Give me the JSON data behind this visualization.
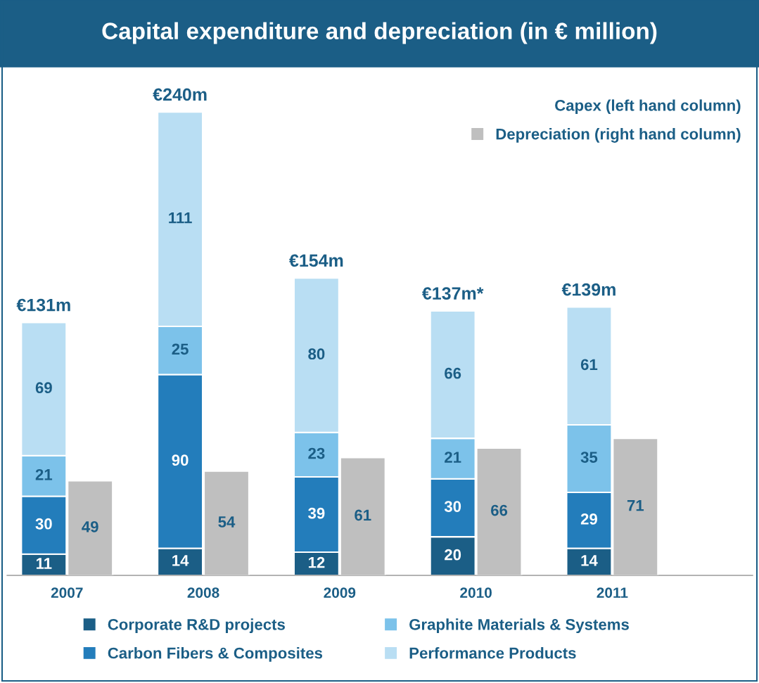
{
  "chart_data": [
    {
      "type": "bar",
      "title": "Capital expenditure and depreciation (in € million)",
      "categories": [
        "2007",
        "2008",
        "2009",
        "2010",
        "2011"
      ],
      "stacked": true,
      "series": [
        {
          "name": "Corporate R&D projects",
          "color": "#1b5e86",
          "values": [
            11,
            14,
            12,
            20,
            14
          ]
        },
        {
          "name": "Carbon Fibers & Composites",
          "color": "#237dbb",
          "values": [
            30,
            90,
            39,
            30,
            29
          ]
        },
        {
          "name": "Graphite Materials & Systems",
          "color": "#7cc2ea",
          "values": [
            21,
            25,
            23,
            21,
            35
          ]
        },
        {
          "name": "Performance Products",
          "color": "#b9def3",
          "values": [
            69,
            111,
            80,
            66,
            61
          ]
        }
      ],
      "annotations": [
        {
          "text": "€131m",
          "x": "2007",
          "y": 131
        },
        {
          "text": "€240m",
          "x": "2008",
          "y": 240
        },
        {
          "text": "€154m",
          "x": "2009",
          "y": 154
        },
        {
          "text": "€137m*",
          "x": "2010",
          "y": 137
        },
        {
          "text": "€139m",
          "x": "2011",
          "y": 139
        }
      ],
      "data_labels": true,
      "legend": "bottom",
      "grid": false
    },
    {
      "type": "bar",
      "categories": [
        "2007",
        "2008",
        "2009",
        "2010",
        "2011"
      ],
      "series": [
        {
          "name": "Depreciation (right hand column)",
          "color": "#bfbfbf",
          "values": [
            49,
            54,
            61,
            66,
            71
          ]
        }
      ],
      "legend_title": "Capex (left hand column)",
      "legend": "top right",
      "data_labels": true,
      "tick_labels": false,
      "grid": false
    }
  ]
}
